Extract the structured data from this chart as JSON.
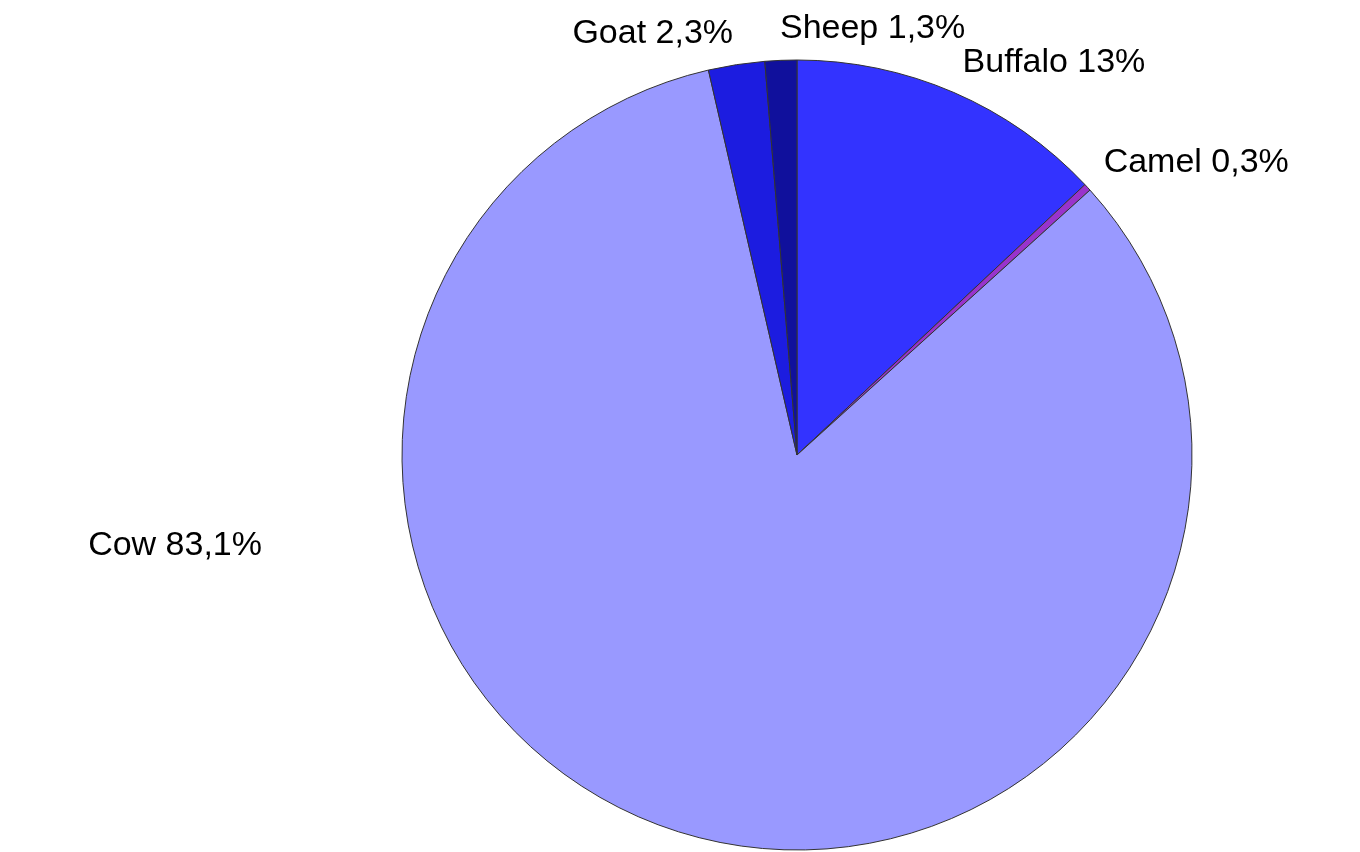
{
  "chart_data": {
    "type": "pie",
    "categories": [
      "Buffalo",
      "Camel",
      "Cow",
      "Goat",
      "Sheep"
    ],
    "values": [
      13,
      0.3,
      83.1,
      2.3,
      1.3
    ],
    "colors": [
      "#3333ff",
      "#9933cc",
      "#9999ff",
      "#1c1ce0",
      "#10109c"
    ],
    "data_labels": true,
    "value_labels": [
      "13%",
      "0,3%",
      "83,1%",
      "2,3%",
      "1,3%"
    ],
    "legend": false
  }
}
